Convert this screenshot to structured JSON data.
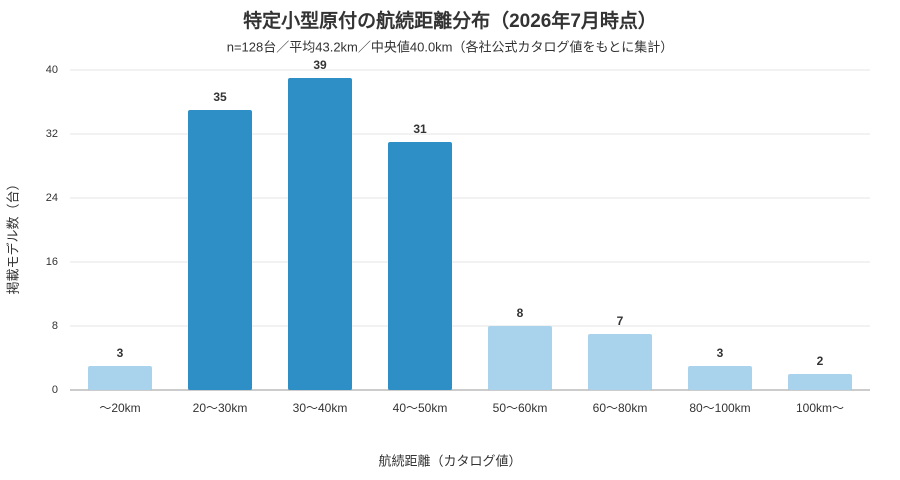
{
  "chart_data": {
    "type": "bar",
    "title": "特定小型原付の航続距離分布（2026年7月時点）",
    "subtitle": "n=128台／平均43.2km／中央値40.0km（各社公式カタログ値をもとに集計）",
    "x_label": "航続距離（カタログ値）",
    "y_label": "掲載モデル数（台）",
    "categories": [
      "〜20km",
      "20〜30km",
      "30〜40km",
      "40〜50km",
      "50〜60km",
      "60〜80km",
      "80〜100km",
      "100km〜"
    ],
    "values": [
      3,
      35,
      39,
      31,
      8,
      7,
      3,
      2
    ],
    "colors": [
      "#a9d3ec",
      "#2e8fc6",
      "#2e8fc6",
      "#2e8fc6",
      "#a9d3ec",
      "#a9d3ec",
      "#a9d3ec",
      "#a9d3ec"
    ],
    "ylim": [
      0,
      40
    ],
    "yticks": [
      0,
      8,
      16,
      24,
      32,
      40
    ],
    "grid": true
  }
}
